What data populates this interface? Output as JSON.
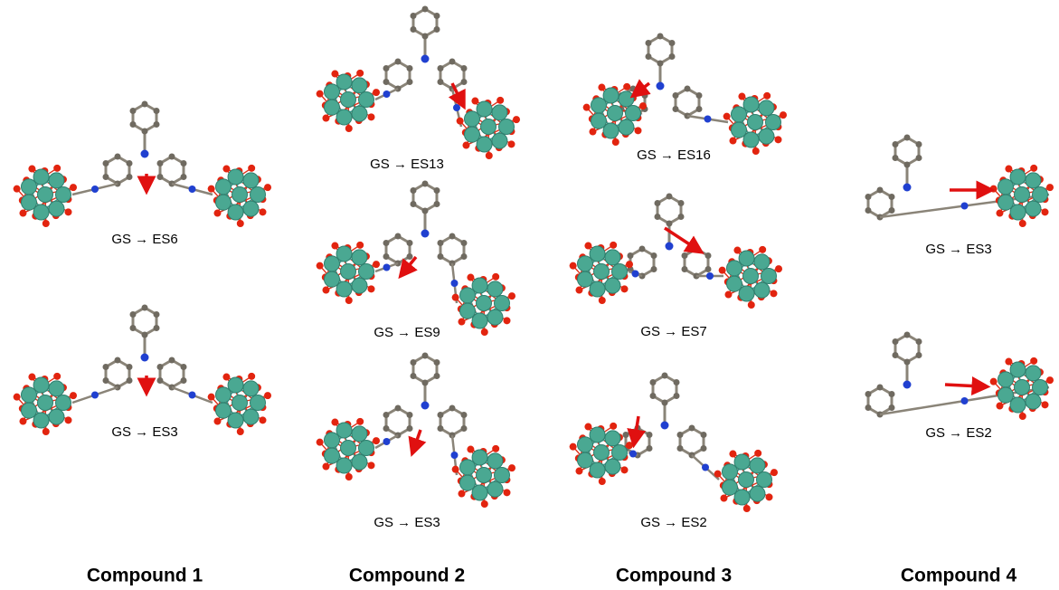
{
  "compounds": [
    {
      "name": "Compound 1",
      "transitions": [
        "GS → ES6",
        "GS → ES3"
      ]
    },
    {
      "name": "Compound 2",
      "transitions": [
        "GS → ES13",
        "GS → ES9",
        "GS → ES3"
      ]
    },
    {
      "name": "Compound 3",
      "transitions": [
        "GS → ES16",
        "GS → ES7",
        "GS → ES2"
      ]
    },
    {
      "name": "Compound 4",
      "transitions": [
        "GS → ES3",
        "GS → ES2"
      ]
    }
  ]
}
